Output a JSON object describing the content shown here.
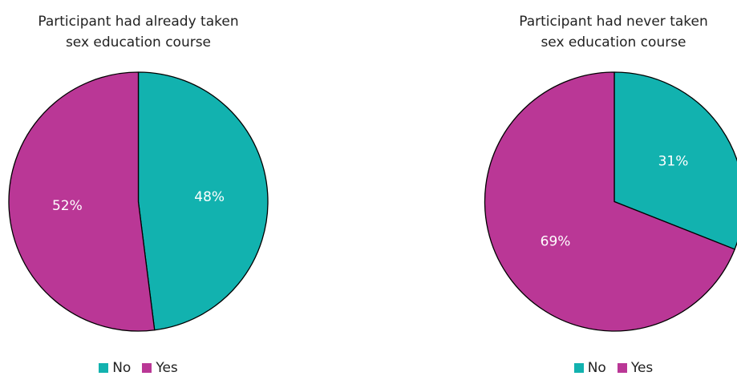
{
  "chart_data": [
    {
      "type": "pie",
      "title": "Participant had already taken\nsex education course",
      "categories": [
        "No",
        "Yes"
      ],
      "values": [
        48,
        52
      ],
      "labels": [
        "48%",
        "52%"
      ],
      "legend": "bottom"
    },
    {
      "type": "pie",
      "title": "Participant had never taken\nsex education course",
      "categories": [
        "No",
        "Yes"
      ],
      "values": [
        31,
        69
      ],
      "labels": [
        "31%",
        "69%"
      ],
      "legend": "bottom"
    }
  ],
  "colors": {
    "No": "#12B2AF",
    "Yes": "#BA3796"
  }
}
